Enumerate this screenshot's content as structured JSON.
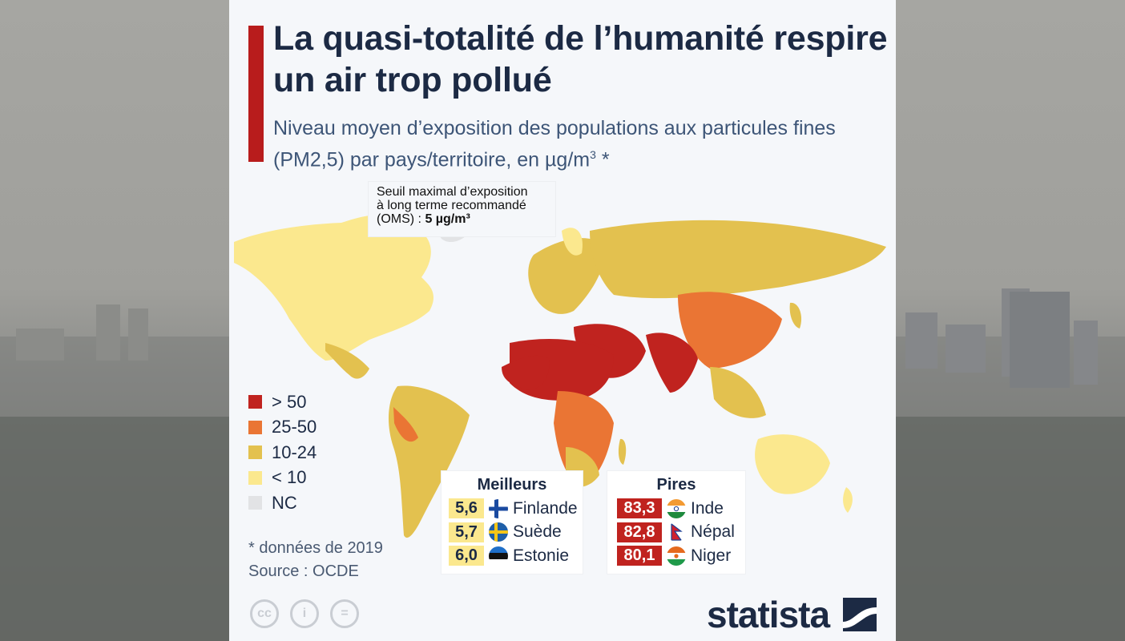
{
  "header": {
    "title": "La quasi-totalité de l’humanité respire un air trop pollué",
    "subtitle_main": "Niveau moyen d’exposition des populations aux particules fines (PM2,5) par pays/territoire, en µg/m",
    "subtitle_sup": "3",
    "subtitle_end": " *"
  },
  "callout": {
    "line1": "Seuil maximal d’exposition",
    "line2": "à long terme recommandé",
    "line3_prefix": "(OMS) : ",
    "line3_value": "5 µg/m³"
  },
  "legend": [
    {
      "label": "> 50",
      "color": "#c0231f"
    },
    {
      "label": "25-50",
      "color": "#ea7534"
    },
    {
      "label": "10-24",
      "color": "#e3c14f"
    },
    {
      "label": "< 10",
      "color": "#fbe88e"
    },
    {
      "label": "NC",
      "color": "#e2e3e5"
    }
  ],
  "footnote": {
    "note": "* données de 2019",
    "source": "Source : OCDE"
  },
  "best": {
    "heading": "Meilleurs",
    "value_color": "#fbe88e",
    "rows": [
      {
        "value": "5,6",
        "country": "Finlande",
        "flag": "finland-flag"
      },
      {
        "value": "5,7",
        "country": "Suède",
        "flag": "sweden-flag"
      },
      {
        "value": "6,0",
        "country": "Estonie",
        "flag": "estonia-flag"
      }
    ]
  },
  "worst": {
    "heading": "Pires",
    "value_color": "#c0231f",
    "rows": [
      {
        "value": "83,3",
        "country": "Inde",
        "flag": "india-flag"
      },
      {
        "value": "82,8",
        "country": "Népal",
        "flag": "nepal-flag"
      },
      {
        "value": "80,1",
        "country": "Niger",
        "flag": "niger-flag"
      }
    ]
  },
  "footer": {
    "brand": "statista",
    "license_icons": [
      "cc-icon",
      "by-icon",
      "nd-icon"
    ],
    "license_glyphs": [
      "cc",
      "i",
      "="
    ]
  }
}
